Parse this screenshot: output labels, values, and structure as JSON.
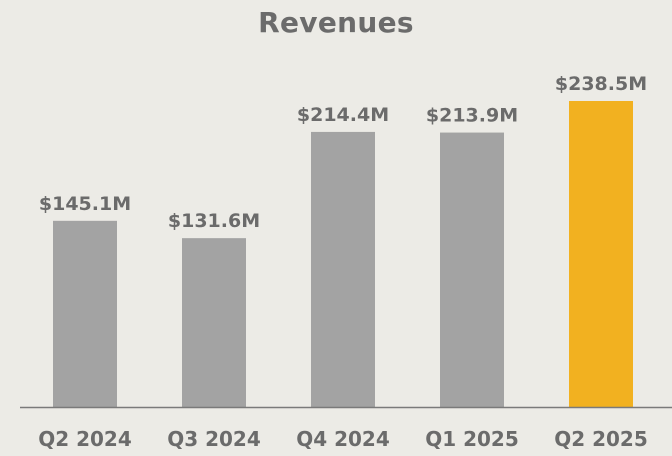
{
  "chart_data": {
    "type": "bar",
    "title": "Revenues",
    "xlabel": "",
    "ylabel": "",
    "categories": [
      "Q2 2024",
      "Q3 2024",
      "Q4 2024",
      "Q1 2025",
      "Q2 2025"
    ],
    "values": [
      145.1,
      131.6,
      214.4,
      213.9,
      238.5
    ],
    "data_labels": [
      "$145.1M",
      "$131.6M",
      "$214.4M",
      "$213.9M",
      "$238.5M"
    ],
    "ylim": [
      0,
      238.5
    ],
    "grid": false,
    "legend": "none",
    "highlight_index": 4
  },
  "colors": {
    "background": "#ECEBE6",
    "bar": "#A3A3A3",
    "highlight_bar": "#F2B120",
    "text": "#6B6B6B",
    "axis": "#7A7A7A"
  }
}
